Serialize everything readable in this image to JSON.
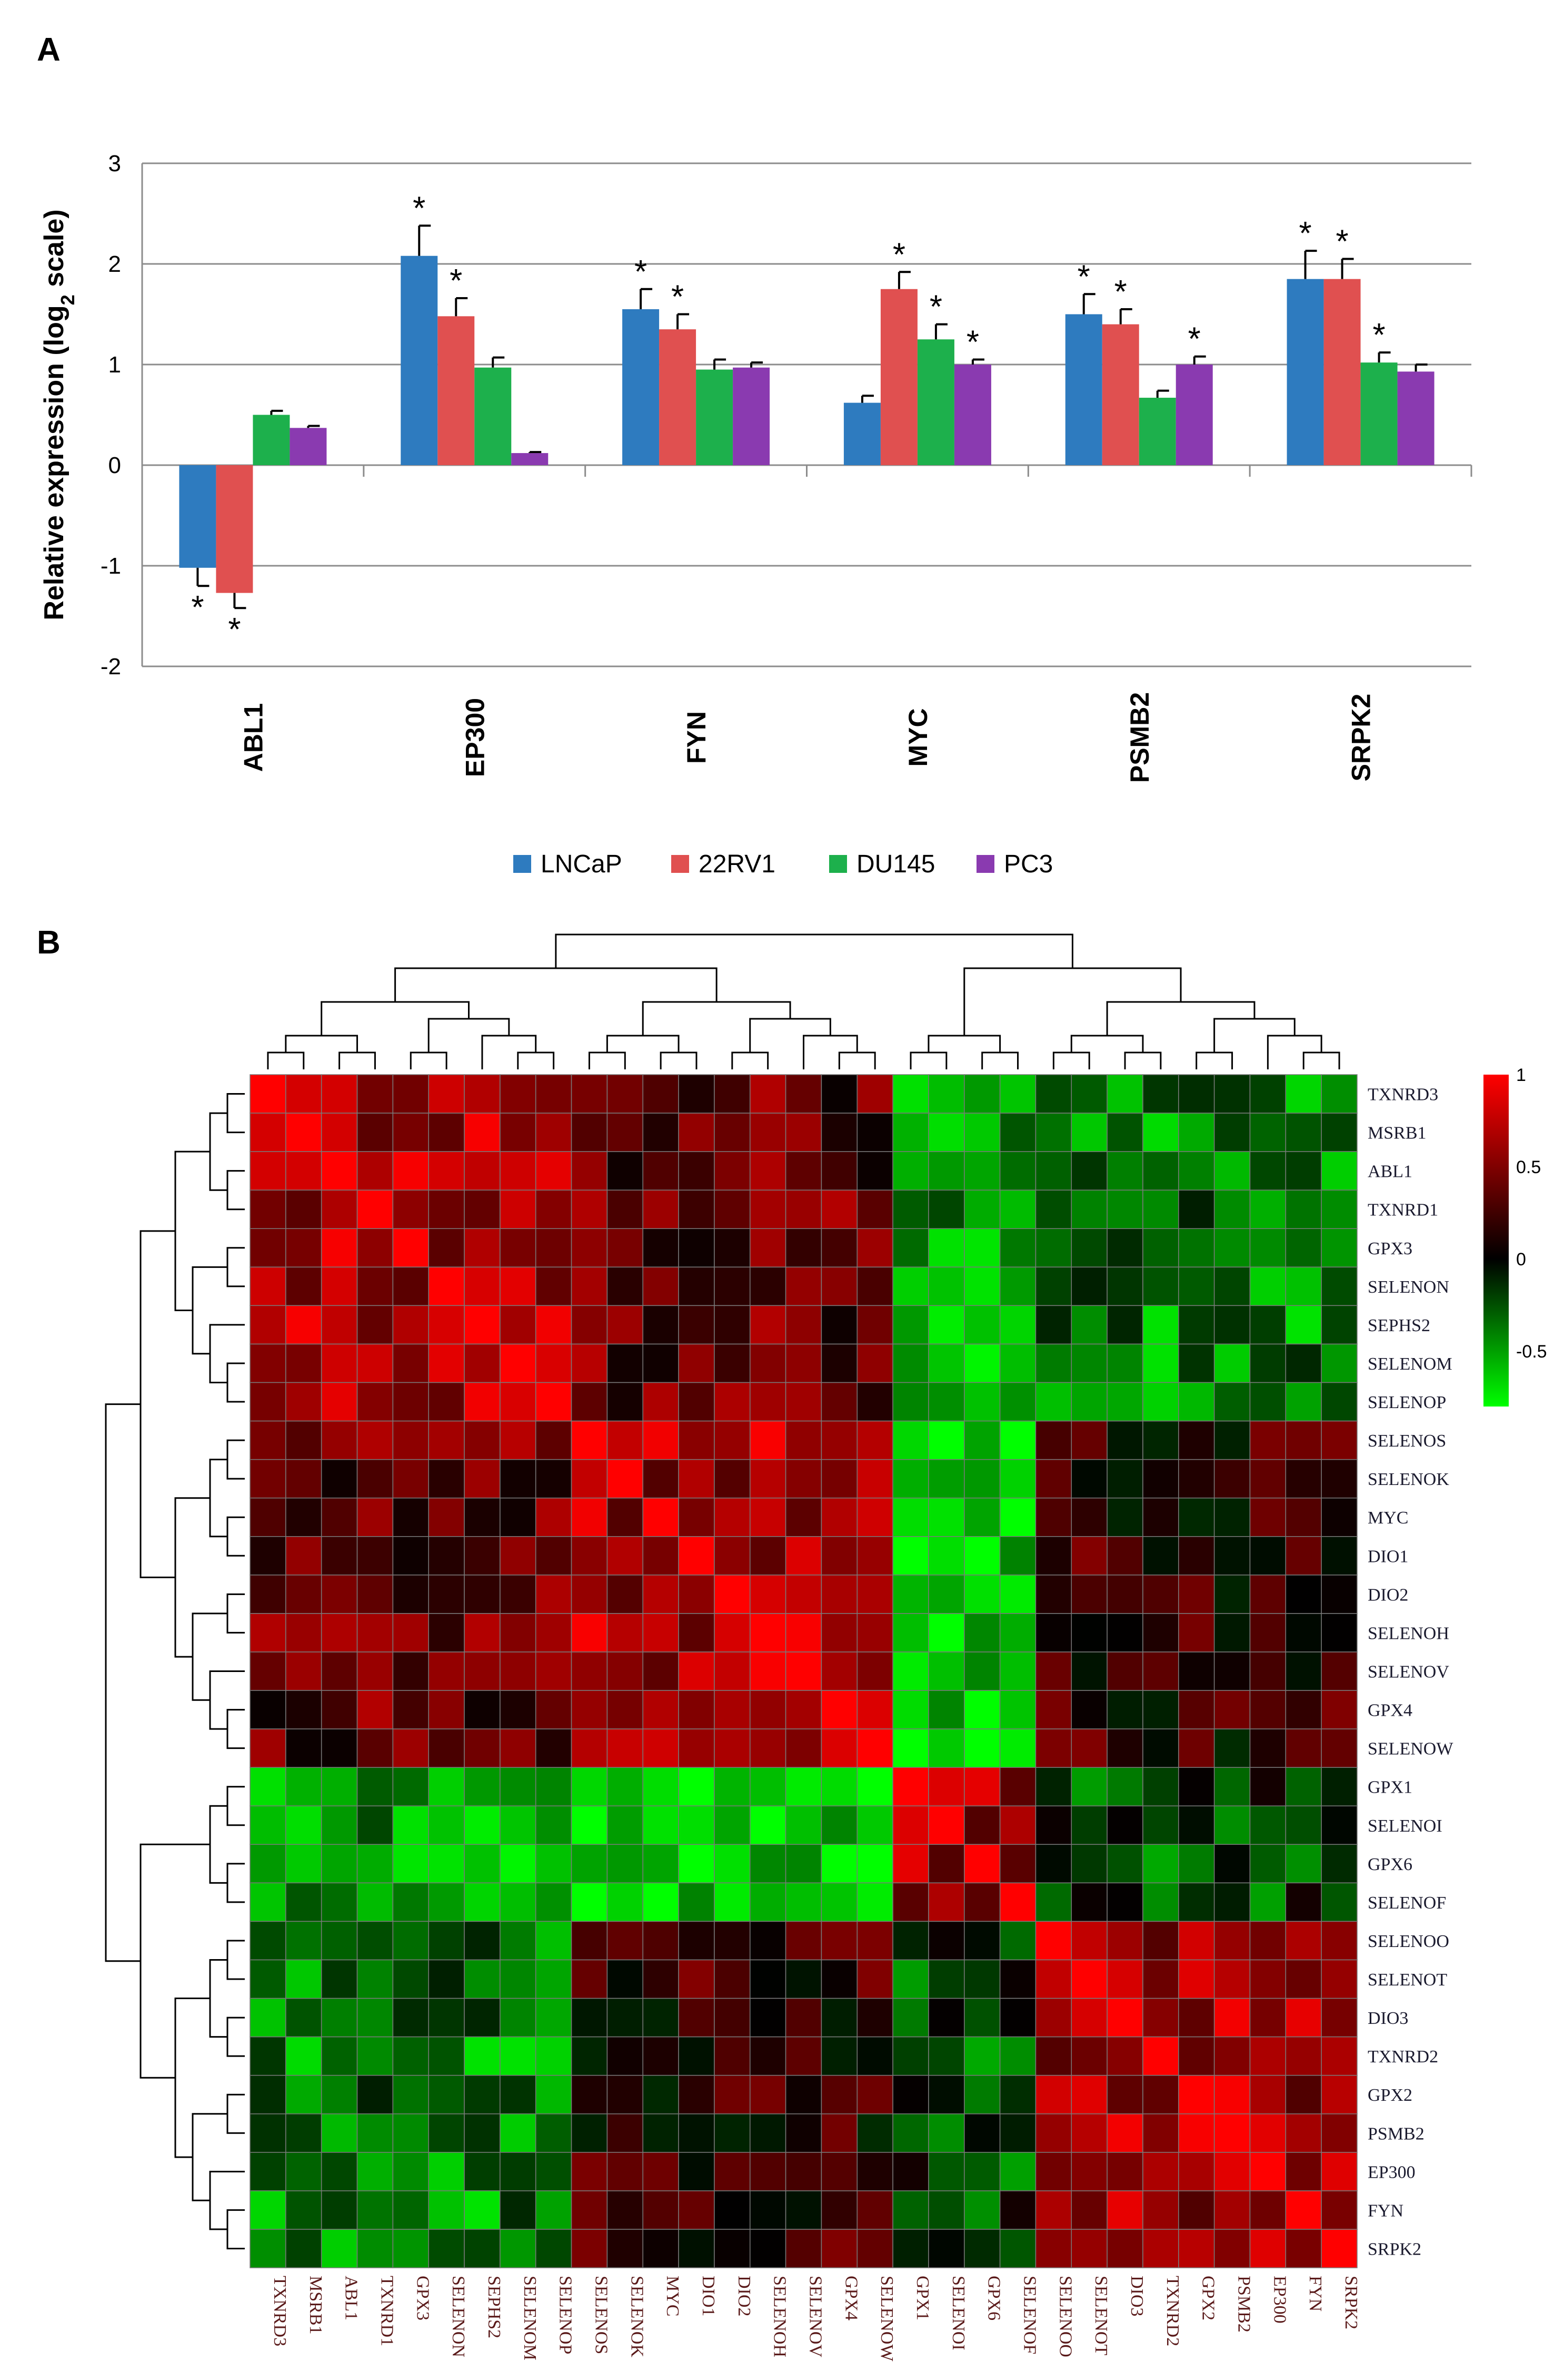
{
  "panels": {
    "a_label": "A",
    "b_label": "B"
  },
  "chart_data": [
    {
      "type": "bar",
      "title": "",
      "xlabel": "",
      "ylabel": "Relative expression (log2 scale)",
      "ylabel_main": "Relative expression (log",
      "ylabel_sub": "2",
      "ylabel_tail": " scale)",
      "ylim": [
        -2,
        3
      ],
      "yticks": [
        "-2",
        "-1",
        "0",
        "1",
        "2",
        "3"
      ],
      "categories": [
        "ABL1",
        "EP300",
        "FYN",
        "MYC",
        "PSMB2",
        "SRPK2"
      ],
      "series": [
        {
          "name": "LNCaP",
          "color": "#2e7bbf",
          "values": [
            -1.02,
            2.08,
            1.55,
            0.62,
            1.5,
            1.85
          ],
          "errors": [
            0.18,
            0.3,
            0.2,
            0.07,
            0.2,
            0.28
          ],
          "significant": [
            true,
            true,
            true,
            false,
            true,
            true
          ]
        },
        {
          "name": "22RV1",
          "color": "#e05050",
          "values": [
            -1.27,
            1.48,
            1.35,
            1.75,
            1.4,
            1.85
          ],
          "errors": [
            0.15,
            0.18,
            0.15,
            0.17,
            0.15,
            0.2
          ],
          "significant": [
            true,
            true,
            true,
            true,
            true,
            true
          ]
        },
        {
          "name": "DU145",
          "color": "#1db04c",
          "values": [
            0.5,
            0.97,
            0.95,
            1.25,
            0.67,
            1.02
          ],
          "errors": [
            0.04,
            0.1,
            0.1,
            0.15,
            0.07,
            0.1
          ],
          "significant": [
            false,
            false,
            false,
            true,
            false,
            true
          ]
        },
        {
          "name": "PC3",
          "color": "#8a3ab0",
          "values": [
            0.37,
            0.12,
            0.97,
            1.0,
            1.0,
            0.93
          ],
          "errors": [
            0.02,
            0.01,
            0.05,
            0.05,
            0.08,
            0.07
          ],
          "significant": [
            false,
            false,
            false,
            true,
            true,
            false
          ]
        }
      ],
      "significance_marker": "*",
      "legend": [
        "LNCaP",
        "22RV1",
        "DU145",
        "PC3"
      ],
      "legend_position": "bottom-center",
      "grid": true
    },
    {
      "type": "heatmap",
      "title": "",
      "row_labels": [
        "TXNRD3",
        "MSRB1",
        "ABL1",
        "TXNRD1",
        "GPX3",
        "SELENON",
        "SEPHS2",
        "SELENOM",
        "SELENOP",
        "SELENOS",
        "SELENOK",
        "MYC",
        "DIO1",
        "DIO2",
        "SELENOH",
        "SELENOV",
        "GPX4",
        "SELENOW",
        "GPX1",
        "SELENOI",
        "GPX6",
        "SELENOF",
        "SELENOO",
        "SELENOT",
        "DIO3",
        "TXNRD2",
        "GPX2",
        "PSMB2",
        "EP300",
        "FYN",
        "SRPK2"
      ],
      "col_labels": [
        "TXNRD3",
        "MSRB1",
        "ABL1",
        "TXNRD1",
        "GPX3",
        "SELENON",
        "SEPHS2",
        "SELENOM",
        "SELENOP",
        "SELENOS",
        "SELENOK",
        "MYC",
        "DIO1",
        "DIO2",
        "SELENOH",
        "SELENOV",
        "GPX4",
        "SELENOW",
        "GPX1",
        "SELENOI",
        "GPX6",
        "SELENOF",
        "SELENOO",
        "SELENOT",
        "DIO3",
        "TXNRD2",
        "GPX2",
        "PSMB2",
        "EP300",
        "FYN",
        "SRPK2"
      ],
      "clusters": [
        [
          0,
          9
        ],
        [
          9,
          18
        ],
        [
          18,
          22
        ],
        [
          22,
          31
        ]
      ],
      "off_diagonal": [
        [
          0,
          0.3,
          -0.4,
          -0.35
        ],
        [
          0.3,
          0,
          -0.6,
          0.15
        ],
        [
          -0.4,
          -0.6,
          0,
          -0.2
        ],
        [
          -0.35,
          0.15,
          -0.2,
          0
        ]
      ],
      "diagonal_block_value": 0.8,
      "colorbar": {
        "min": -0.8,
        "max": 1,
        "ticks": [
          "1",
          "0.5",
          "0",
          "-0.5"
        ],
        "low_color": "#00ff00",
        "mid_color": "#000000",
        "high_color": "#ff0000"
      }
    }
  ]
}
